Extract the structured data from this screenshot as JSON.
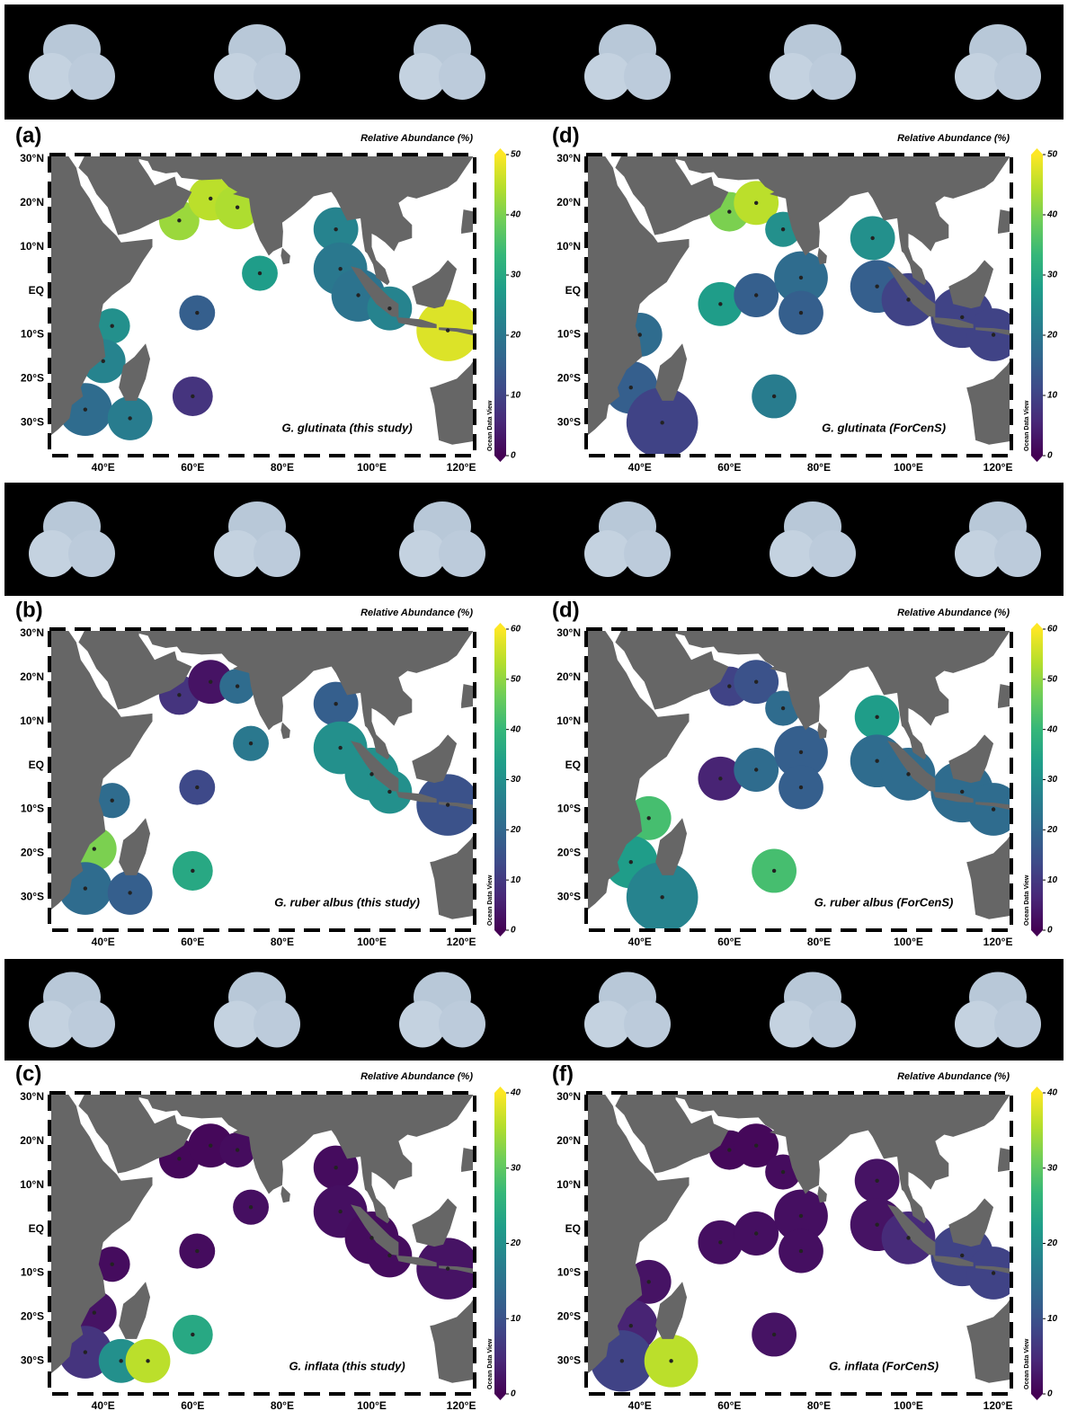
{
  "panels": [
    {
      "label": "(a)",
      "legend_title": "Relative Abundance (%)",
      "species": "G. glutinata (this study)",
      "credit": "Ocean Data View",
      "lat_labels": [
        "30°N",
        "20°N",
        "10°N",
        "EQ",
        "10°S",
        "20°S",
        "30°S"
      ],
      "lon_labels": [
        "40°E",
        "60°E",
        "80°E",
        "100°E",
        "120°E"
      ],
      "colorbar_ticks": [
        0,
        10,
        20,
        30,
        40,
        50
      ]
    },
    {
      "label": "(d)",
      "legend_title": "Relative Abundance (%)",
      "species": "G. glutinata (ForCenS)",
      "credit": "Ocean Data View",
      "lat_labels": [
        "30°N",
        "20°N",
        "10°N",
        "EQ",
        "10°S",
        "20°S",
        "30°S"
      ],
      "lon_labels": [
        "40°E",
        "60°E",
        "80°E",
        "100°E",
        "120°E"
      ],
      "colorbar_ticks": [
        0,
        10,
        20,
        30,
        40,
        50
      ]
    },
    {
      "label": "(b)",
      "legend_title": "Relative Abundance (%)",
      "species": "G. ruber albus (this study)",
      "credit": "Ocean Data View",
      "lat_labels": [
        "30°N",
        "20°N",
        "10°N",
        "EQ",
        "10°S",
        "20°S",
        "30°S"
      ],
      "lon_labels": [
        "40°E",
        "60°E",
        "80°E",
        "100°E",
        "120°E"
      ],
      "colorbar_ticks": [
        0,
        10,
        20,
        30,
        40,
        50,
        60
      ]
    },
    {
      "label": "(d)",
      "legend_title": "Relative Abundance (%)",
      "species": "G. ruber albus (ForCenS)",
      "credit": "Ocean Data View",
      "lat_labels": [
        "30°N",
        "20°N",
        "10°N",
        "EQ",
        "10°S",
        "20°S",
        "30°S"
      ],
      "lon_labels": [
        "40°E",
        "60°E",
        "80°E",
        "100°E",
        "120°E"
      ],
      "colorbar_ticks": [
        0,
        10,
        20,
        30,
        40,
        50,
        60
      ]
    },
    {
      "label": "(c)",
      "legend_title": "Relative Abundance (%)",
      "species": "G. inflata (this study)",
      "credit": "Ocean Data View",
      "lat_labels": [
        "30°N",
        "20°N",
        "10°N",
        "EQ",
        "10°S",
        "20°S",
        "30°S"
      ],
      "lon_labels": [
        "40°E",
        "60°E",
        "80°E",
        "100°E",
        "120°E"
      ],
      "colorbar_ticks": [
        0,
        10,
        20,
        30,
        40
      ]
    },
    {
      "label": "(f)",
      "legend_title": "Relative Abundance (%)",
      "species": "G. inflata (ForCenS)",
      "credit": "Ocean Data View",
      "lat_labels": [
        "30°N",
        "20°N",
        "10°N",
        "EQ",
        "10°S",
        "20°S",
        "30°S"
      ],
      "lon_labels": [
        "40°E",
        "60°E",
        "80°E",
        "100°E",
        "120°E"
      ],
      "colorbar_ticks": [
        0,
        10,
        20,
        30,
        40
      ]
    }
  ]
}
